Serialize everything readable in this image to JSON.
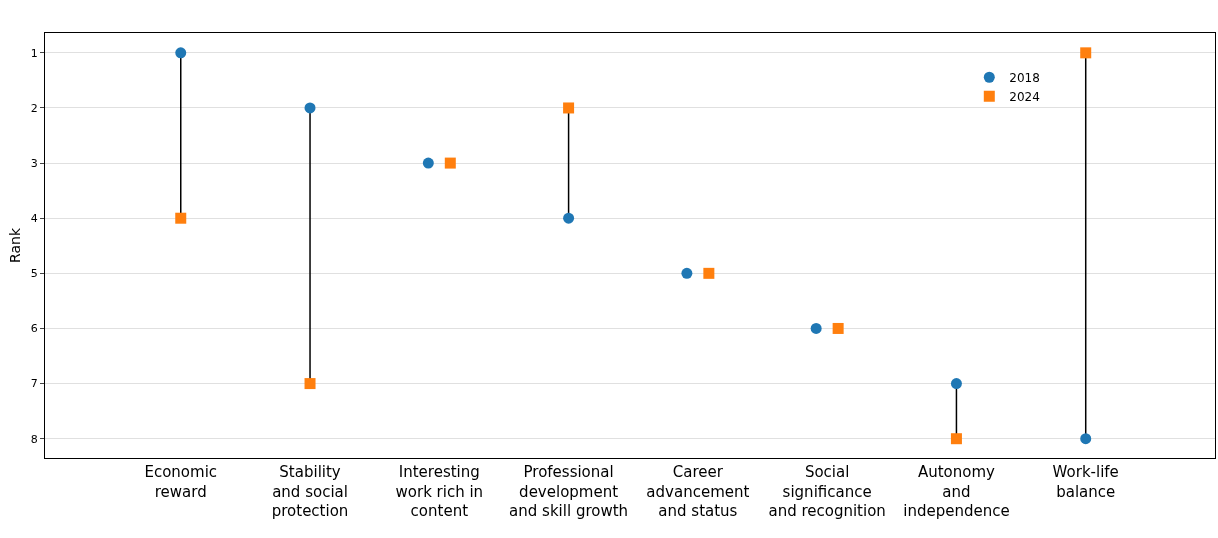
{
  "chart_data": {
    "type": "scatter",
    "ylabel": "Rank",
    "categories": [
      "Economic\nreward",
      "Stability\nand social\nprotection",
      "Interesting\nwork rich in\ncontent",
      "Professional\ndevelopment\nand skill growth",
      "Career\nadvancement\nand status",
      "Social\nsignificance\nand recognition",
      "Autonomy\nand\nindependence",
      "Work-life\nbalance"
    ],
    "series": [
      {
        "name": "2018",
        "color": "#1f77b4",
        "marker": "circle",
        "values": [
          1,
          2,
          3,
          4,
          5,
          6,
          7,
          8
        ]
      },
      {
        "name": "2024",
        "color": "#ff7f0e",
        "marker": "square",
        "values": [
          4,
          7,
          3,
          2,
          5,
          6,
          8,
          1
        ]
      }
    ],
    "ylim": [
      8.35,
      0.64
    ],
    "yticks": [
      1,
      2,
      3,
      4,
      5,
      6,
      7,
      8
    ],
    "grid": "y",
    "legend": "top right"
  }
}
